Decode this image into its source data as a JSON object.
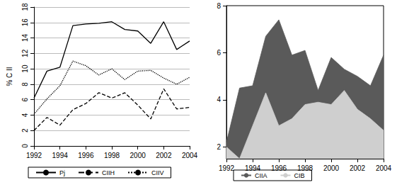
{
  "chart_data": [
    {
      "type": "line",
      "y_label": "% C II",
      "x": [
        1992,
        1993,
        1994,
        1995,
        1996,
        1997,
        1998,
        1999,
        2000,
        2001,
        2002,
        2003,
        2004
      ],
      "xlim": [
        1992,
        2004
      ],
      "xticks": [
        1992,
        1994,
        1996,
        1998,
        2000,
        2002,
        2004
      ],
      "ylim": [
        0,
        18
      ],
      "yticks": [
        0,
        2,
        4,
        6,
        8,
        10,
        12,
        14,
        16,
        18
      ],
      "grid": true,
      "legend": "bottom",
      "series": [
        {
          "name": "Pj",
          "color": "#000000",
          "line_style": "solid",
          "values": [
            6.2,
            9.7,
            10.2,
            15.6,
            15.8,
            15.9,
            16.1,
            15.1,
            14.9,
            13.3,
            16.1,
            12.5,
            13.6
          ]
        },
        {
          "name": "CIIH",
          "color": "#000000",
          "line_style": "dashed",
          "values": [
            2.0,
            3.7,
            2.7,
            4.7,
            5.5,
            6.9,
            6.2,
            6.9,
            5.3,
            3.5,
            7.4,
            4.8,
            5.0
          ]
        },
        {
          "name": "CIIV",
          "color": "#000000",
          "line_style": "dotted",
          "values": [
            4.1,
            6.1,
            7.8,
            11.0,
            10.4,
            9.2,
            10.0,
            8.6,
            9.7,
            9.8,
            8.8,
            8.0,
            8.9
          ]
        }
      ]
    },
    {
      "type": "area",
      "x": [
        1992,
        1993,
        1994,
        1995,
        1996,
        1997,
        1998,
        1999,
        2000,
        2001,
        2002,
        2003,
        2004
      ],
      "xlim": [
        1992,
        2004
      ],
      "xticks": [
        1992,
        1994,
        1996,
        1998,
        2000,
        2002,
        2004
      ],
      "ylim": [
        1.5,
        8
      ],
      "yticks": [
        2,
        4,
        6,
        8
      ],
      "grid": true,
      "stacked": false,
      "legend": "bottom",
      "series": [
        {
          "name": "CIIA",
          "color": "#5a5a5a",
          "values": [
            2.2,
            4.5,
            4.6,
            6.7,
            7.4,
            5.9,
            6.1,
            4.4,
            5.8,
            5.3,
            5.0,
            4.6,
            5.9
          ]
        },
        {
          "name": "CIB",
          "color": "#cfcfcf",
          "values": [
            2.0,
            1.5,
            2.9,
            4.3,
            2.9,
            3.2,
            3.8,
            3.9,
            3.8,
            4.4,
            3.6,
            3.2,
            2.7
          ]
        }
      ]
    }
  ]
}
